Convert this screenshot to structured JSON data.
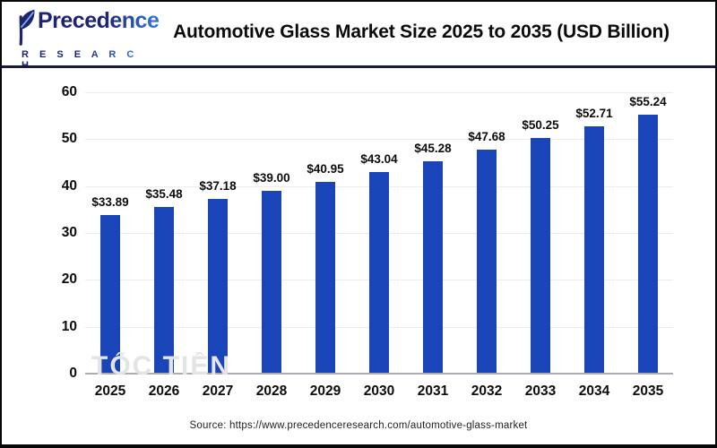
{
  "header": {
    "brand": "Precedence",
    "brand_sub": "R E S E A R C H",
    "title": "Automotive Glass Market Size 2025 to 2035 (USD Billion)"
  },
  "watermark": "TỐC TIỀN",
  "footer": {
    "source": "Source: https://www.precedenceresearch.com/automotive-glass-market"
  },
  "chart_data": {
    "type": "bar",
    "title": "Automotive Glass Market Size 2025 to 2035 (USD Billion)",
    "categories": [
      "2025",
      "2026",
      "2027",
      "2028",
      "2029",
      "2030",
      "2031",
      "2032",
      "2033",
      "2034",
      "2035"
    ],
    "values": [
      33.89,
      35.48,
      37.18,
      39.0,
      40.95,
      43.04,
      45.28,
      47.68,
      50.25,
      52.71,
      55.24
    ],
    "value_labels": [
      "$33.89",
      "$35.48",
      "$37.18",
      "$39.00",
      "$40.95",
      "$43.04",
      "$45.28",
      "$47.68",
      "$50.25",
      "$52.71",
      "$55.24"
    ],
    "xlabel": "",
    "ylabel": "",
    "ylim": [
      0,
      60
    ],
    "yticks": [
      0,
      10,
      20,
      30,
      40,
      50,
      60
    ],
    "grid": "horizontal",
    "legend_position": "none",
    "colors": {
      "bar": "#1a45b8",
      "gridline": "#ececec",
      "axis": "#a9aeb4",
      "label": "#0c0c0c"
    }
  }
}
